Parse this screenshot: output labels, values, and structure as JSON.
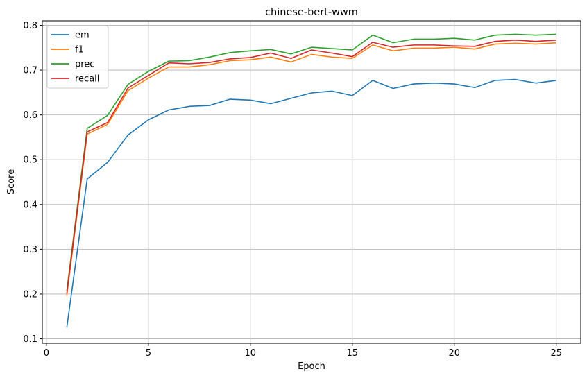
{
  "chart_data": {
    "type": "line",
    "title": "chinese-bert-wwm",
    "xlabel": "Epoch",
    "ylabel": "Score",
    "xlim": [
      -0.2,
      26.2
    ],
    "ylim": [
      0.09,
      0.81
    ],
    "xticks": [
      0,
      5,
      10,
      15,
      20,
      25
    ],
    "yticks": [
      0.1,
      0.2,
      0.3,
      0.4,
      0.5,
      0.6,
      0.7,
      0.8
    ],
    "grid": true,
    "legend_position": "top-left",
    "x": [
      1,
      2,
      3,
      4,
      5,
      6,
      7,
      8,
      9,
      10,
      11,
      12,
      13,
      14,
      15,
      16,
      17,
      18,
      19,
      20,
      21,
      22,
      23,
      24,
      25
    ],
    "series": [
      {
        "name": "em",
        "color": "#1f77b4",
        "values": [
          0.125,
          0.457,
          0.494,
          0.555,
          0.589,
          0.611,
          0.619,
          0.621,
          0.635,
          0.633,
          0.625,
          0.637,
          0.649,
          0.653,
          0.643,
          0.677,
          0.659,
          0.669,
          0.671,
          0.669,
          0.661,
          0.677,
          0.679,
          0.671,
          0.677
        ]
      },
      {
        "name": "f1",
        "color": "#ff7f0e",
        "values": [
          0.196,
          0.557,
          0.579,
          0.654,
          0.682,
          0.707,
          0.707,
          0.712,
          0.721,
          0.723,
          0.729,
          0.718,
          0.735,
          0.729,
          0.726,
          0.756,
          0.743,
          0.749,
          0.749,
          0.751,
          0.747,
          0.758,
          0.76,
          0.758,
          0.761
        ]
      },
      {
        "name": "prec",
        "color": "#2ca02c",
        "values": [
          0.207,
          0.57,
          0.599,
          0.668,
          0.697,
          0.72,
          0.721,
          0.729,
          0.739,
          0.743,
          0.746,
          0.736,
          0.751,
          0.748,
          0.745,
          0.778,
          0.761,
          0.769,
          0.769,
          0.771,
          0.767,
          0.778,
          0.78,
          0.778,
          0.78
        ]
      },
      {
        "name": "recall",
        "color": "#d62728",
        "values": [
          0.201,
          0.562,
          0.583,
          0.66,
          0.688,
          0.716,
          0.714,
          0.717,
          0.725,
          0.728,
          0.738,
          0.726,
          0.745,
          0.738,
          0.73,
          0.762,
          0.751,
          0.756,
          0.756,
          0.754,
          0.753,
          0.764,
          0.767,
          0.764,
          0.767
        ]
      }
    ]
  }
}
